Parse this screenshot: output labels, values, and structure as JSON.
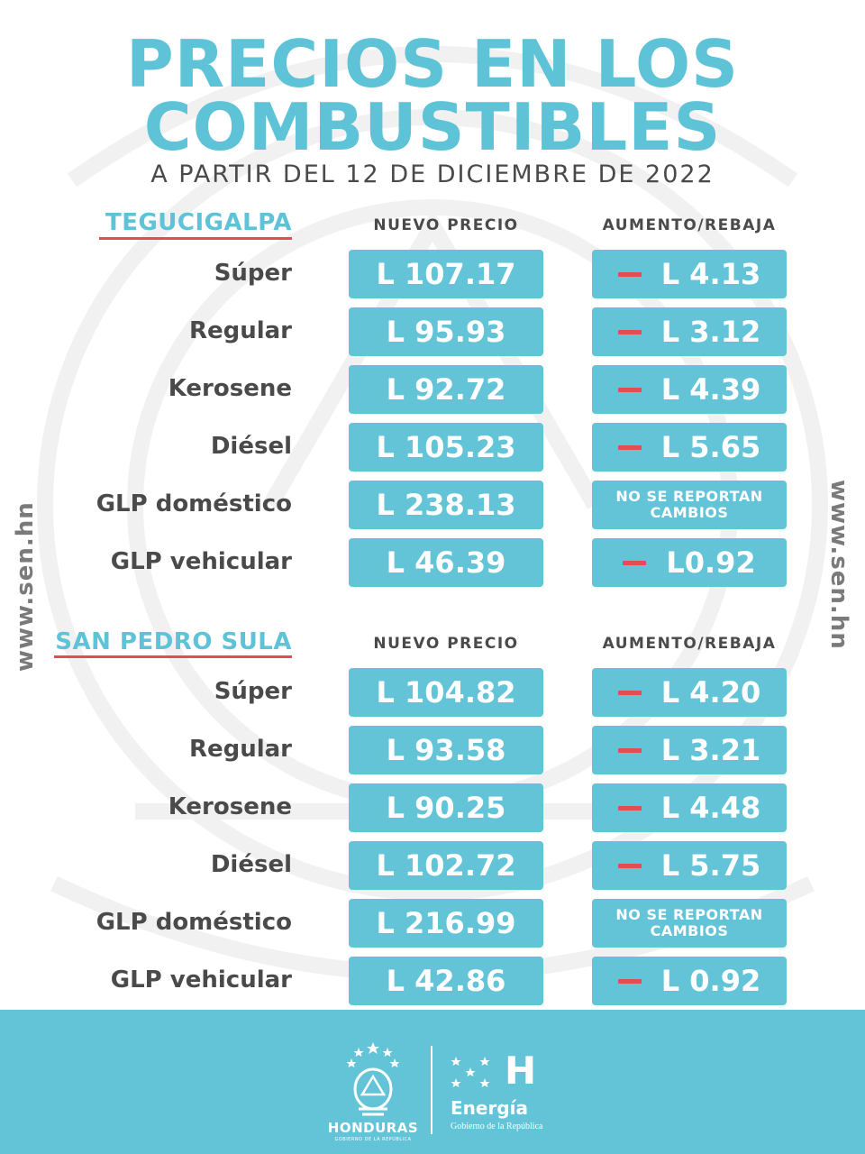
{
  "header": {
    "title_line1": "PRECIOS EN LOS",
    "title_line2": "COMBUSTIBLES",
    "subtitle": "A PARTIR DEL 12 DE DICIEMBRE DE 2022"
  },
  "side_url": "www.sen.hn",
  "columns": {
    "price": "NUEVO PRECIO",
    "change": "AUMENTO/REBAJA"
  },
  "sections": [
    {
      "city": "TEGUCIGALPA",
      "rows": [
        {
          "product": "Súper",
          "price": "L 107.17",
          "change": "L 4.13",
          "decrease": true
        },
        {
          "product": "Regular",
          "price": "L 95.93",
          "change": "L 3.12",
          "decrease": true
        },
        {
          "product": "Kerosene",
          "price": "L 92.72",
          "change": "L 4.39",
          "decrease": true
        },
        {
          "product": "Diésel",
          "price": "L 105.23",
          "change": "L 5.65",
          "decrease": true
        },
        {
          "product": "GLP doméstico",
          "price": "L 238.13",
          "change_line1": "NO SE REPORTAN",
          "change_line2": "CAMBIOS"
        },
        {
          "product": "GLP vehicular",
          "price": "L 46.39",
          "change": "L0.92",
          "decrease": true
        }
      ]
    },
    {
      "city": "SAN PEDRO SULA",
      "rows": [
        {
          "product": "Súper",
          "price": "L 104.82",
          "change": "L 4.20",
          "decrease": true
        },
        {
          "product": "Regular",
          "price": "L 93.58",
          "change": "L 3.21",
          "decrease": true
        },
        {
          "product": "Kerosene",
          "price": "L 90.25",
          "change": "L 4.48",
          "decrease": true
        },
        {
          "product": "Diésel",
          "price": "L 102.72",
          "change": "L 5.75",
          "decrease": true
        },
        {
          "product": "GLP doméstico",
          "price": "L 216.99",
          "change_line1": "NO SE REPORTAN",
          "change_line2": "CAMBIOS"
        },
        {
          "product": "GLP vehicular",
          "price": "L 42.86",
          "change": "L 0.92",
          "decrease": true
        }
      ]
    }
  ],
  "footer": {
    "logo1_text": "HONDURAS",
    "logo1_subtext": "GOBIERNO DE LA REPÚBLICA",
    "logo2_letter": "H",
    "logo2_text": "Energía",
    "logo2_subtext": "Gobierno de la República"
  },
  "colors": {
    "accent": "#5ec3d6",
    "box": "#64c4d7",
    "decrease": "#e24b57",
    "text": "#4a4a4a"
  },
  "icons": {
    "emblem": "honduras-coat-of-arms-icon",
    "stars": "five-stars-icon"
  }
}
